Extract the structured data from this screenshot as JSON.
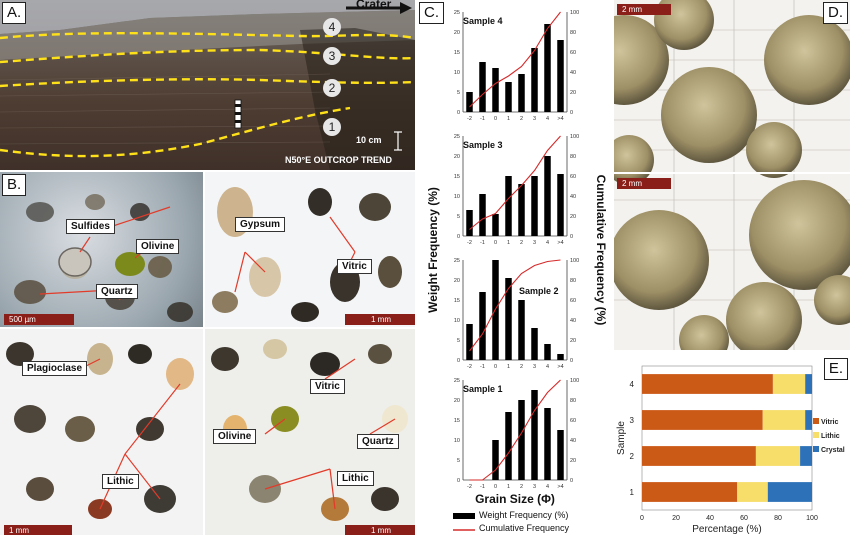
{
  "panel_a": {
    "label": "A.",
    "crater_label": "Crater",
    "units": [
      "4",
      "3",
      "2",
      "1"
    ],
    "scale_label": "10 cm",
    "trend_label": "N50°E OUTCROP TREND"
  },
  "panel_b": {
    "label": "B.",
    "tl": {
      "callouts": [
        "Sulfides",
        "Olivine",
        "Quartz"
      ],
      "scale": "500 µm"
    },
    "tr": {
      "callouts": [
        "Gypsum",
        "Vitric"
      ],
      "scale": "1 mm"
    },
    "bl": {
      "callouts": [
        "Plagioclase",
        "Lithic"
      ],
      "scale": "1 mm"
    },
    "br": {
      "callouts": [
        "Vitric",
        "Olivine",
        "Quartz",
        "Lithic"
      ],
      "scale": "1 mm"
    }
  },
  "panel_c": {
    "label": "C.",
    "y_left_label": "Weight Frequency (%)",
    "y_right_label": "Cumulative Frequency (%)",
    "x_label": "Grain Size (Φ)",
    "legend": [
      "Weight Frequency (%)",
      "Cumulative Frequency"
    ]
  },
  "panel_d": {
    "label": "D.",
    "scales": [
      "2 mm",
      "2 mm"
    ]
  },
  "panel_e": {
    "label": "E.",
    "y_label": "Sample",
    "x_label": "Percentage (%)"
  },
  "colors": {
    "vitric": "#cc5a17",
    "lithic": "#f7dd6a",
    "crystal": "#2d72b8",
    "cumulative": "#d52a2a",
    "callout_line": "#e23b2a",
    "dash": "#ffe11a",
    "scalebar": "#8a1f1a"
  },
  "chart_data": [
    {
      "type": "bar",
      "panel": "C",
      "title": "Sample 4",
      "categories": [
        "-2",
        "-1",
        "0",
        "1",
        "2",
        "3",
        "4",
        ">4"
      ],
      "series": [
        {
          "name": "Weight Frequency (%)",
          "values": [
            5,
            12.5,
            11,
            7.5,
            9.5,
            16,
            22,
            18
          ]
        },
        {
          "name": "Cumulative Frequency",
          "values": [
            5,
            17.5,
            28.5,
            36,
            45.5,
            61.5,
            83.5,
            100
          ]
        }
      ],
      "ylim": [
        0,
        25
      ],
      "y2lim": [
        0,
        100
      ]
    },
    {
      "type": "bar",
      "panel": "C",
      "title": "Sample 3",
      "categories": [
        "-2",
        "-1",
        "0",
        "1",
        "2",
        "3",
        "4",
        ">4"
      ],
      "series": [
        {
          "name": "Weight Frequency (%)",
          "values": [
            6.5,
            10.5,
            5.5,
            15,
            13,
            15,
            20,
            15.5
          ]
        },
        {
          "name": "Cumulative Frequency",
          "values": [
            6.5,
            17,
            22.5,
            37.5,
            50.5,
            65.5,
            85.5,
            100
          ]
        }
      ],
      "ylim": [
        0,
        25
      ],
      "y2lim": [
        0,
        100
      ]
    },
    {
      "type": "bar",
      "panel": "C",
      "title": "Sample 2",
      "categories": [
        "-2",
        "-1",
        "0",
        "1",
        "2",
        "3",
        "4",
        ">4"
      ],
      "series": [
        {
          "name": "Weight Frequency (%)",
          "values": [
            9,
            17,
            25,
            20.5,
            15,
            8,
            4,
            1.5
          ]
        },
        {
          "name": "Cumulative Frequency",
          "values": [
            9,
            26,
            51,
            71.5,
            86.5,
            94.5,
            98.5,
            100
          ]
        }
      ],
      "ylim": [
        0,
        25
      ],
      "y2lim": [
        0,
        100
      ]
    },
    {
      "type": "bar",
      "panel": "C",
      "title": "Sample 1",
      "categories": [
        "-2",
        "-1",
        "0",
        "1",
        "2",
        "3",
        "4",
        ">4"
      ],
      "series": [
        {
          "name": "Weight Frequency (%)",
          "values": [
            0,
            0,
            10,
            17,
            20,
            22.5,
            18,
            12.5
          ]
        },
        {
          "name": "Cumulative Frequency",
          "values": [
            0,
            0,
            10,
            27,
            47,
            69.5,
            87.5,
            100
          ]
        }
      ],
      "ylim": [
        0,
        25
      ],
      "y2lim": [
        0,
        100
      ]
    },
    {
      "type": "bar",
      "orientation": "horizontal-stacked",
      "panel": "E",
      "categories": [
        "4",
        "3",
        "2",
        "1"
      ],
      "series": [
        {
          "name": "Vitric",
          "values": [
            77,
            71,
            67,
            56
          ]
        },
        {
          "name": "Lithic",
          "values": [
            19,
            25,
            26,
            18
          ]
        },
        {
          "name": "Crystal",
          "values": [
            4,
            4,
            7,
            26
          ]
        }
      ],
      "ylabel": "Sample",
      "xlabel": "Percentage (%)",
      "xticks": [
        "0",
        "20",
        "40",
        "60",
        "80",
        "100"
      ],
      "xlim": [
        0,
        100
      ],
      "legend": "right"
    }
  ]
}
